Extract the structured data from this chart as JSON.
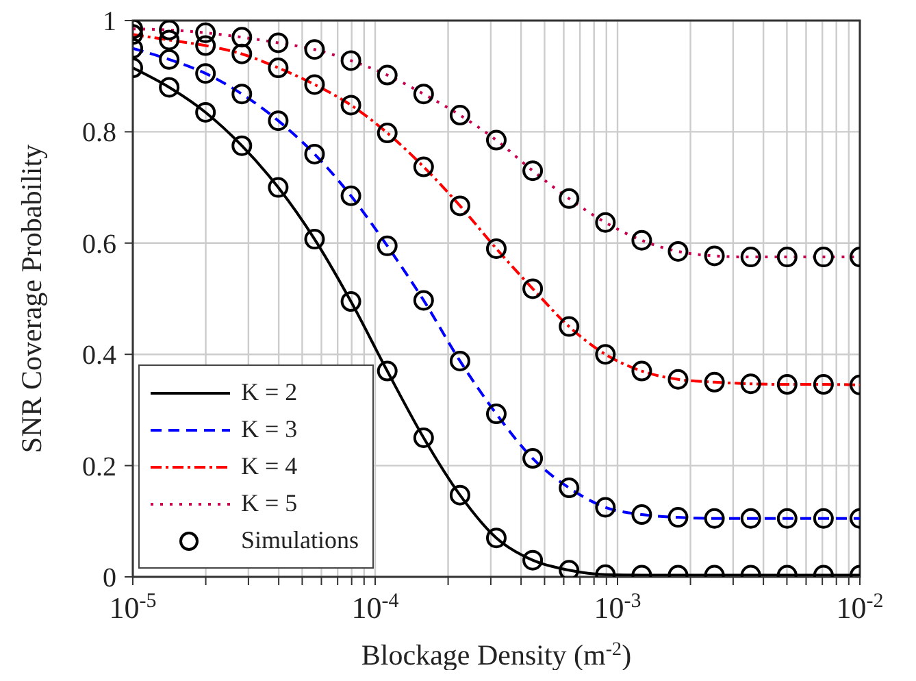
{
  "chart_data": {
    "type": "line",
    "xlabel": "Blockage Density (m$^{-2}$)",
    "ylabel": "SNR Coverage Probability",
    "log": "x",
    "x": [
      1e-05,
      1.413e-05,
      1.995e-05,
      2.818e-05,
      3.981e-05,
      5.623e-05,
      7.943e-05,
      0.0001122,
      0.0001585,
      0.0002239,
      0.0003162,
      0.0004467,
      0.000631,
      0.0008913,
      0.001259,
      0.001778,
      0.002512,
      0.003548,
      0.005012,
      0.007079,
      0.01
    ],
    "series": [
      {
        "name": "K = 2",
        "color": "#000000",
        "line_style": "solid",
        "values": [
          0.915,
          0.88,
          0.835,
          0.775,
          0.7,
          0.607,
          0.495,
          0.37,
          0.25,
          0.147,
          0.07,
          0.03,
          0.012,
          0.004,
          0.003,
          0.003,
          0.003,
          0.003,
          0.003,
          0.003,
          0.003
        ]
      },
      {
        "name": "K = 3",
        "color": "#0000ff",
        "line_style": "dashed",
        "values": [
          0.95,
          0.93,
          0.905,
          0.868,
          0.82,
          0.76,
          0.685,
          0.595,
          0.497,
          0.388,
          0.293,
          0.213,
          0.16,
          0.125,
          0.112,
          0.107,
          0.105,
          0.105,
          0.105,
          0.105,
          0.105
        ]
      },
      {
        "name": "K = 4",
        "color": "#ff0000",
        "line_style": "dashdot",
        "values": [
          0.975,
          0.965,
          0.955,
          0.94,
          0.915,
          0.885,
          0.848,
          0.798,
          0.737,
          0.667,
          0.59,
          0.518,
          0.45,
          0.4,
          0.37,
          0.355,
          0.35,
          0.347,
          0.346,
          0.346,
          0.345
        ]
      },
      {
        "name": "K = 5",
        "color": "#c8004f",
        "line_style": "dotted",
        "values": [
          0.985,
          0.983,
          0.978,
          0.97,
          0.96,
          0.948,
          0.928,
          0.902,
          0.868,
          0.83,
          0.785,
          0.73,
          0.68,
          0.637,
          0.605,
          0.585,
          0.577,
          0.575,
          0.575,
          0.575,
          0.575
        ]
      },
      {
        "name": "Simulations",
        "type": "scatter",
        "color": "#000000",
        "marker": "circle",
        "x": [
          1e-05,
          1.413e-05,
          1.995e-05,
          2.818e-05,
          3.981e-05,
          5.623e-05,
          7.943e-05,
          0.0001122,
          0.0001585,
          0.0002239,
          0.0003162,
          0.0004467,
          0.000631,
          0.0008913,
          0.001259,
          0.001778,
          0.002512,
          0.003548,
          0.005012,
          0.007079,
          0.01,
          1e-05,
          1.413e-05,
          1.995e-05,
          2.818e-05,
          3.981e-05,
          5.623e-05,
          7.943e-05,
          0.0001122,
          0.0001585,
          0.0002239,
          0.0003162,
          0.0004467,
          0.000631,
          0.0008913,
          0.001259,
          0.001778,
          0.002512,
          0.003548,
          0.005012,
          0.007079,
          0.01,
          1e-05,
          1.413e-05,
          1.995e-05,
          2.818e-05,
          3.981e-05,
          5.623e-05,
          7.943e-05,
          0.0001122,
          0.0001585,
          0.0002239,
          0.0003162,
          0.0004467,
          0.000631,
          0.0008913,
          0.001259,
          0.001778,
          0.002512,
          0.003548,
          0.005012,
          0.007079,
          0.01,
          1e-05,
          1.413e-05,
          1.995e-05,
          2.818e-05,
          3.981e-05,
          5.623e-05,
          7.943e-05,
          0.0001122,
          0.0001585,
          0.0002239,
          0.0003162,
          0.0004467,
          0.000631,
          0.0008913,
          0.001259,
          0.001778,
          0.002512,
          0.003548,
          0.005012,
          0.007079,
          0.01
        ],
        "values": [
          0.915,
          0.88,
          0.835,
          0.775,
          0.7,
          0.607,
          0.495,
          0.37,
          0.25,
          0.147,
          0.07,
          0.03,
          0.012,
          0.004,
          0.003,
          0.003,
          0.003,
          0.003,
          0.003,
          0.003,
          0.003,
          0.95,
          0.93,
          0.905,
          0.868,
          0.82,
          0.76,
          0.685,
          0.595,
          0.497,
          0.388,
          0.293,
          0.213,
          0.16,
          0.125,
          0.112,
          0.107,
          0.105,
          0.105,
          0.105,
          0.105,
          0.105,
          0.975,
          0.965,
          0.955,
          0.94,
          0.915,
          0.885,
          0.848,
          0.798,
          0.737,
          0.667,
          0.59,
          0.518,
          0.45,
          0.4,
          0.37,
          0.355,
          0.35,
          0.347,
          0.346,
          0.346,
          0.345,
          0.985,
          0.983,
          0.978,
          0.97,
          0.96,
          0.948,
          0.928,
          0.902,
          0.868,
          0.83,
          0.785,
          0.73,
          0.68,
          0.637,
          0.605,
          0.585,
          0.577,
          0.575,
          0.575,
          0.575,
          0.575
        ]
      }
    ],
    "xlim": [
      1e-05,
      0.01
    ],
    "xticks": [
      {
        "value": 1e-05,
        "label": "10$^{-5}$"
      },
      {
        "value": 2e-05,
        "label": null
      },
      {
        "value": 3e-05,
        "label": null
      },
      {
        "value": 4e-05,
        "label": null
      },
      {
        "value": 5e-05,
        "label": null
      },
      {
        "value": 6e-05,
        "label": null
      },
      {
        "value": 7e-05,
        "label": null
      },
      {
        "value": 8e-05,
        "label": null
      },
      {
        "value": 9e-05,
        "label": null
      },
      {
        "value": 0.0001,
        "label": "10$^{-4}$"
      },
      {
        "value": 0.0002,
        "label": null
      },
      {
        "value": 0.0003,
        "label": null
      },
      {
        "value": 0.0004,
        "label": null
      },
      {
        "value": 0.0005,
        "label": null
      },
      {
        "value": 0.0006,
        "label": null
      },
      {
        "value": 0.0007,
        "label": null
      },
      {
        "value": 0.0008,
        "label": null
      },
      {
        "value": 0.0009,
        "label": null
      },
      {
        "value": 0.001,
        "label": "10$^{-3}$"
      },
      {
        "value": 0.002,
        "label": null
      },
      {
        "value": 0.003,
        "label": null
      },
      {
        "value": 0.004,
        "label": null
      },
      {
        "value": 0.005,
        "label": null
      },
      {
        "value": 0.006,
        "label": null
      },
      {
        "value": 0.007,
        "label": null
      },
      {
        "value": 0.008,
        "label": null
      },
      {
        "value": 0.009,
        "label": null
      },
      {
        "value": 0.01,
        "label": "10$^{-2}$"
      }
    ],
    "ylim": [
      0,
      1
    ],
    "yticks": [
      0,
      0.2,
      0.4,
      0.6,
      0.8,
      1
    ],
    "grid": true,
    "legend": "bottom left"
  }
}
